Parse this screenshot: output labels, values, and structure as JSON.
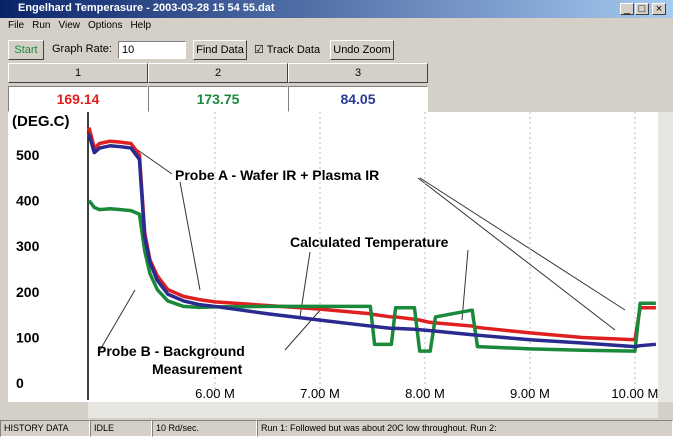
{
  "window": {
    "title": "Engelhard Temperasure - 2003-03-28 15 54 55.dat"
  },
  "menu": [
    "File",
    "Run",
    "View",
    "Options",
    "Help"
  ],
  "toolbar": {
    "start": "Start",
    "rate_label": "Graph Rate:",
    "rate": "10",
    "find": "Find Data",
    "track": "Track Data",
    "undo": "Undo Zoom"
  },
  "channels": [
    {
      "name": "1",
      "reading": "169.14",
      "color": "#e02020"
    },
    {
      "name": "2",
      "reading": "173.75",
      "color": "#1a8a3a"
    },
    {
      "name": "3",
      "reading": "84.05",
      "color": "#2a3a9a"
    }
  ],
  "chart_data": {
    "type": "line",
    "ylabel": "(DEG.C)",
    "x": [
      4.8,
      4.85,
      4.9,
      5.0,
      5.1,
      5.2,
      5.28,
      5.33,
      5.38,
      5.45,
      5.55,
      5.7,
      5.85,
      6.0,
      6.5,
      7.0,
      7.48,
      7.52,
      7.68,
      7.72,
      7.9,
      7.95,
      8.05,
      8.1,
      8.45,
      8.5,
      9.0,
      9.5,
      10.0,
      10.05,
      10.2
    ],
    "series": [
      {
        "color": "#e02020",
        "values": [
          560,
          515,
          525,
          530,
          528,
          525,
          500,
          330,
          270,
          235,
          205,
          190,
          183,
          178,
          170,
          162,
          152,
          150,
          145,
          145,
          140,
          138,
          133,
          132,
          125,
          122,
          110,
          100,
          95,
          165,
          165
        ]
      },
      {
        "color": "#1a8a3a",
        "values": [
          400,
          385,
          380,
          382,
          380,
          378,
          370,
          290,
          240,
          205,
          180,
          168,
          166,
          167,
          168,
          168,
          168,
          85,
          85,
          165,
          165,
          70,
          70,
          145,
          160,
          80,
          75,
          72,
          70,
          175,
          175
        ]
      },
      {
        "color": "#2a2a90",
        "values": [
          545,
          505,
          515,
          520,
          518,
          515,
          490,
          320,
          265,
          225,
          195,
          180,
          172,
          168,
          152,
          138,
          125,
          124,
          120,
          120,
          118,
          117,
          115,
          114,
          106,
          105,
          95,
          88,
          80,
          82,
          85
        ]
      }
    ],
    "xlim": [
      4.79,
      10.22
    ],
    "ylim": [
      -37,
      594
    ],
    "xticks": [
      {
        "value": 6,
        "label": "6.00 M"
      },
      {
        "value": 7,
        "label": "7.00 M"
      },
      {
        "value": 8,
        "label": "8.00 M"
      },
      {
        "value": 9,
        "label": "9.00 M"
      },
      {
        "value": 10,
        "label": "10.00 M"
      }
    ],
    "yticks": [
      0,
      100,
      200,
      300,
      400,
      500
    ],
    "grid": true,
    "annotations": [
      "Probe A - Wafer IR + Plasma IR",
      "Calculated Temperature",
      "Probe B - Background",
      "Measurement"
    ]
  },
  "statusbar": [
    "HISTORY DATA",
    "IDLE",
    "10 Rd/sec.",
    "Run 1: Followed but was about 20C low throughout.  Run 2:"
  ]
}
